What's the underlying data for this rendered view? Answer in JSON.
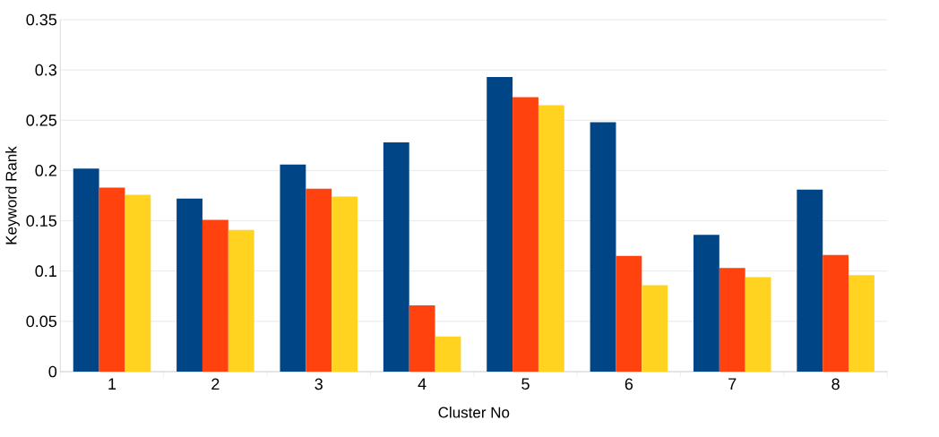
{
  "chart_data": {
    "type": "bar",
    "xlabel": "Cluster No",
    "ylabel": "Keyword Rank",
    "categories": [
      "1",
      "2",
      "3",
      "4",
      "5",
      "6",
      "7",
      "8"
    ],
    "series": [
      {
        "color": "#004586",
        "values": [
          0.202,
          0.172,
          0.206,
          0.228,
          0.293,
          0.248,
          0.136,
          0.181
        ]
      },
      {
        "color": "#ff420e",
        "values": [
          0.183,
          0.151,
          0.182,
          0.066,
          0.273,
          0.115,
          0.103,
          0.116
        ]
      },
      {
        "color": "#ffd320",
        "values": [
          0.176,
          0.141,
          0.174,
          0.035,
          0.265,
          0.086,
          0.094,
          0.096
        ]
      }
    ],
    "ylim": [
      0,
      0.35
    ],
    "yticks": [
      0,
      0.05,
      0.1,
      0.15,
      0.2,
      0.25,
      0.3,
      0.35
    ],
    "grid": "y"
  }
}
